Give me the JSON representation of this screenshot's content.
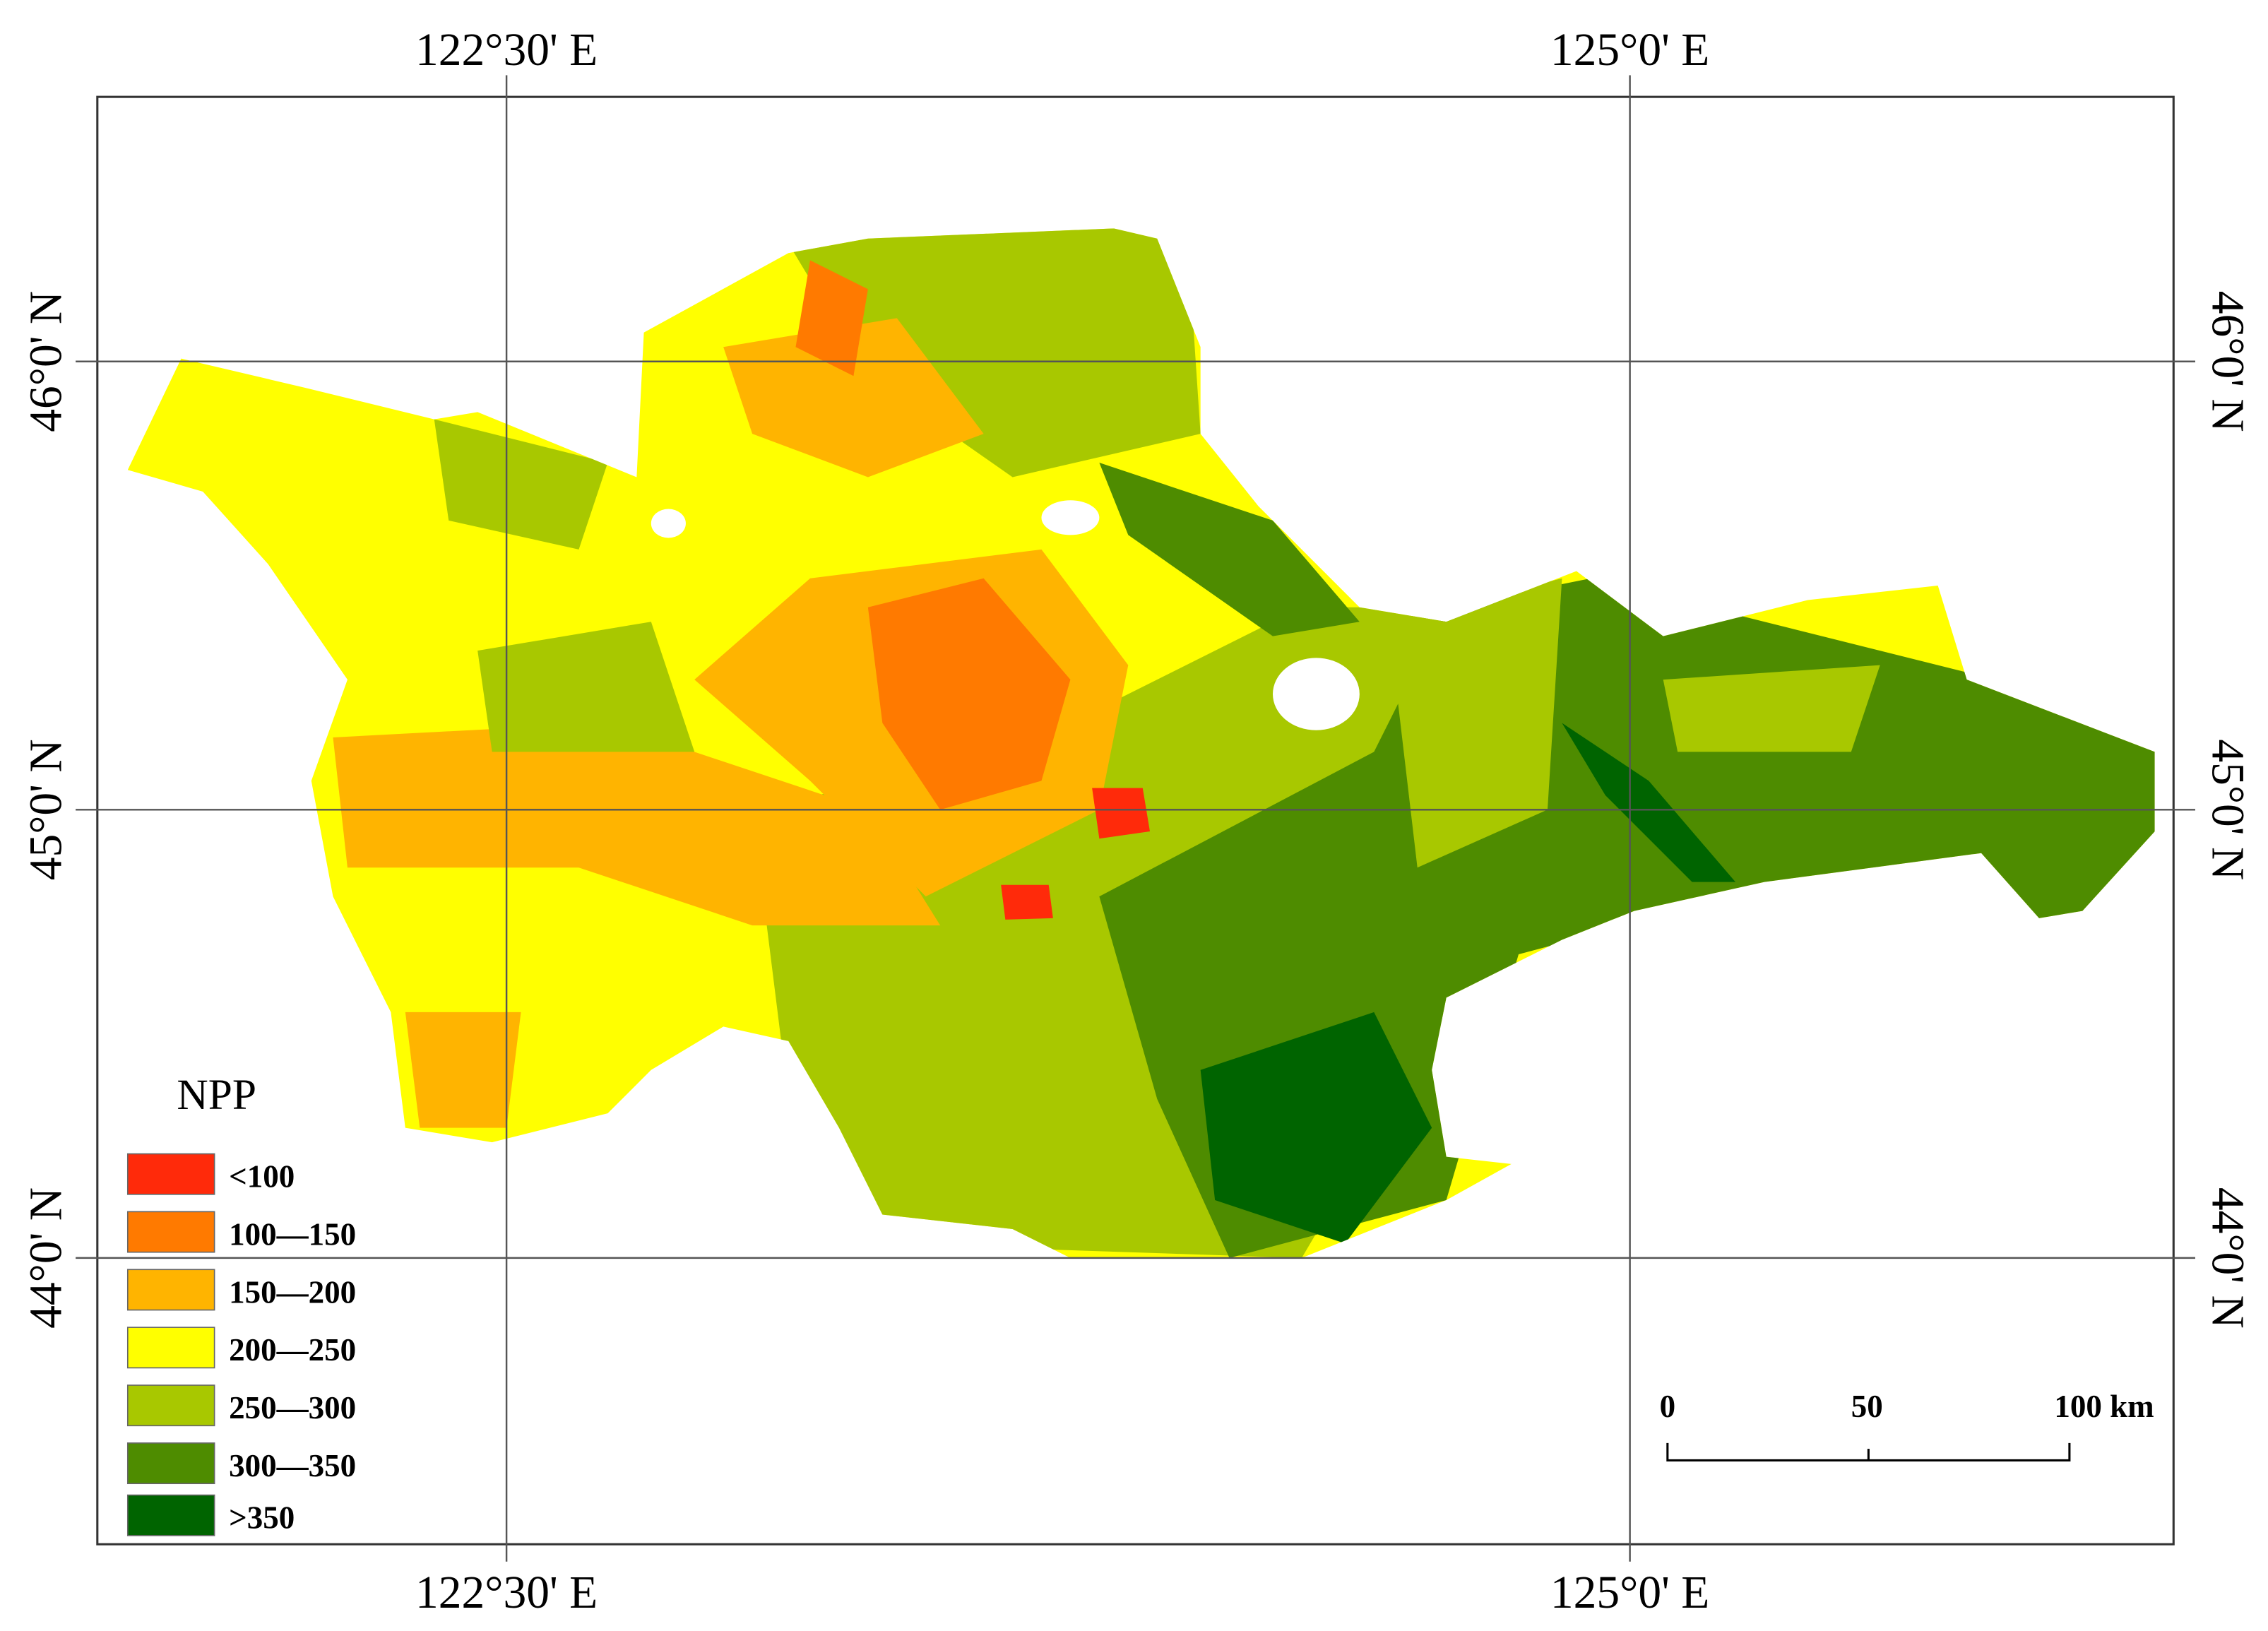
{
  "map": {
    "top_labels": [
      "122°30' E",
      "125°0' E"
    ],
    "bottom_labels": [
      "122°30' E",
      "125°0' E"
    ],
    "left_labels": [
      "46°0' N",
      "45°0' N",
      "44°0' N"
    ],
    "right_labels": [
      "46°0' N",
      "45°0' N",
      "44°0' N"
    ],
    "legend": {
      "title": "NPP",
      "items": [
        {
          "label": "<100",
          "color": "#ff2a0a"
        },
        {
          "label": "100—150",
          "color": "#ff7a00"
        },
        {
          "label": "150—200",
          "color": "#ffb400"
        },
        {
          "label": "200—250",
          "color": "#ffff00"
        },
        {
          "label": "250—300",
          "color": "#a8c800"
        },
        {
          "label": "300—350",
          "color": "#4e8c00"
        },
        {
          "label": ">350",
          "color": "#006400"
        }
      ]
    },
    "scale_bar": {
      "labels": [
        "0",
        "50",
        "100 km"
      ]
    }
  }
}
